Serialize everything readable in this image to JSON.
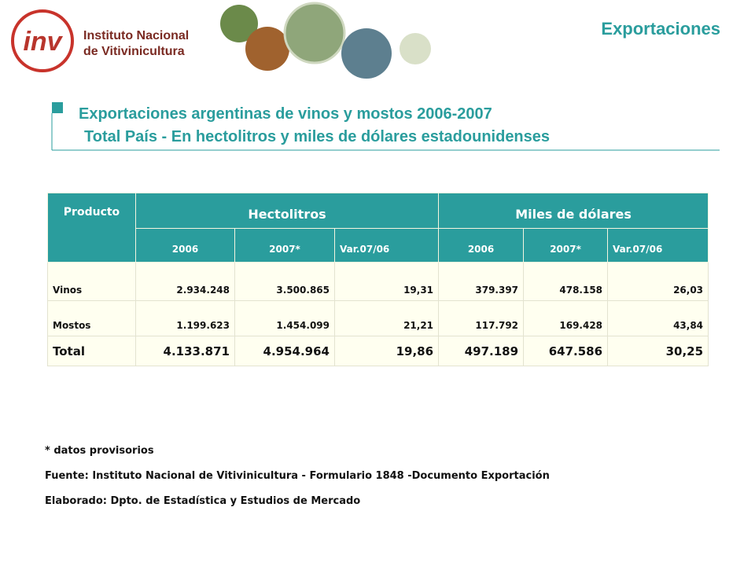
{
  "header": {
    "logo_mark": "inv",
    "logo_lines": [
      "Instituto Nacional",
      "de Vitivinicultura"
    ],
    "section": "Exportaciones"
  },
  "title": "Exportaciones argentinas de vinos y mostos 2006-2007",
  "subtitle": "Total País - En hectolitros y miles de dólares estadounidenses",
  "table": {
    "groups": [
      "Producto",
      "Hectolitros",
      "Miles de dólares"
    ],
    "subheaders": [
      "2006",
      "2007*",
      "Var.07/06",
      "2006",
      "2007*",
      "Var.07/06"
    ],
    "rows": [
      [
        "Vinos",
        "2.934.248",
        "3.500.865",
        "19,31",
        "379.397",
        "478.158",
        "26,03"
      ],
      [
        "Mostos",
        "1.199.623",
        "1.454.099",
        "21,21",
        "117.792",
        "169.428",
        "43,84"
      ],
      [
        "Total",
        "4.133.871",
        "4.954.964",
        "19,86",
        "497.189",
        "647.586",
        "30,25"
      ]
    ]
  },
  "notes": [
    "* datos provisorios",
    "Fuente: Instituto Nacional de Vitivinicultura - Formulario 1848 -Documento Exportación",
    "Elaborado: Dpto. de Estadística y Estudios de Mercado"
  ]
}
